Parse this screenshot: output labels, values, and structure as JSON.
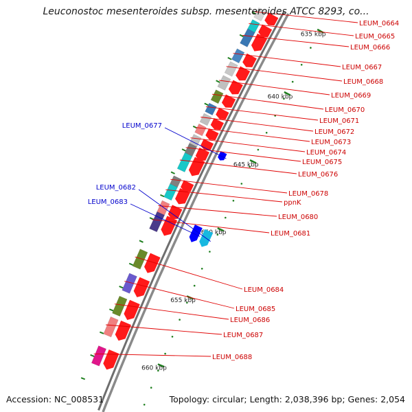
{
  "title": "Leuconostoc mesenteroides subsp. mesenteroides ATCC 8293, co...",
  "footer": {
    "accession": "Accession: NC_008531",
    "stats": "Topology: circular; Length: 2,038,396 bp; Genes: 2,054"
  },
  "colors": {
    "forward_label": "#cc0000",
    "reverse_label": "#0000cc",
    "backbone": "#7f7f7f",
    "tick": "#1f7f1f"
  },
  "ticks": [
    {
      "label": "635 kbp"
    },
    {
      "label": "640 kbp"
    },
    {
      "label": "645 kbp"
    },
    {
      "label": "650 kbp"
    },
    {
      "label": "655 kbp"
    },
    {
      "label": "660 kbp"
    }
  ],
  "forward_genes": [
    {
      "label": "LEUM_0664",
      "cog_color": "#d6d6d6"
    },
    {
      "label": "LEUM_0665",
      "cog_color": "#18c8c8"
    },
    {
      "label": "LEUM_0666",
      "cog_color": "#3a78b4"
    },
    {
      "label": "LEUM_0667",
      "cog_color": "#4a86c0"
    },
    {
      "label": "LEUM_0668",
      "cog_color": "#c8c8c8"
    },
    {
      "label": "LEUM_0669",
      "cog_color": "#c0c0c0"
    },
    {
      "label": "LEUM_0670",
      "cog_color": "#6a8a2a"
    },
    {
      "label": "LEUM_0671",
      "cog_color": "#3a78b4"
    },
    {
      "label": "LEUM_0672",
      "cog_color": "#c0c0c0"
    },
    {
      "label": "LEUM_0673",
      "cog_color": "#f08080"
    },
    {
      "label": "LEUM_0674",
      "cog_color": "#c0c0c0"
    },
    {
      "label": "LEUM_0675",
      "cog_color": "#7a7a7a"
    },
    {
      "label": "LEUM_0676",
      "cog_color": "#18c8c8"
    },
    {
      "label": "LEUM_0678",
      "cog_color": "#808080"
    },
    {
      "label": "ppnK",
      "cog_color": "#18c8c8"
    },
    {
      "label": "LEUM_0680",
      "cog_color": "#f08080"
    },
    {
      "label": "LEUM_0681",
      "cog_color": "#4a3a8a"
    },
    {
      "label": "LEUM_0684",
      "cog_color": "#6a8a2a"
    },
    {
      "label": "LEUM_0685",
      "cog_color": "#6a5acd"
    },
    {
      "label": "LEUM_0686",
      "cog_color": "#6a8a2a"
    },
    {
      "label": "LEUM_0687",
      "cog_color": "#f08080"
    },
    {
      "label": "LEUM_0688",
      "cog_color": "#e0168a"
    }
  ],
  "reverse_genes": [
    {
      "label": "LEUM_0677",
      "cog_color": "#0000ff"
    },
    {
      "label": "LEUM_0682",
      "cog_color": "#18b8e0"
    },
    {
      "label": "LEUM_0683",
      "cog_color": "#0000ff"
    }
  ]
}
